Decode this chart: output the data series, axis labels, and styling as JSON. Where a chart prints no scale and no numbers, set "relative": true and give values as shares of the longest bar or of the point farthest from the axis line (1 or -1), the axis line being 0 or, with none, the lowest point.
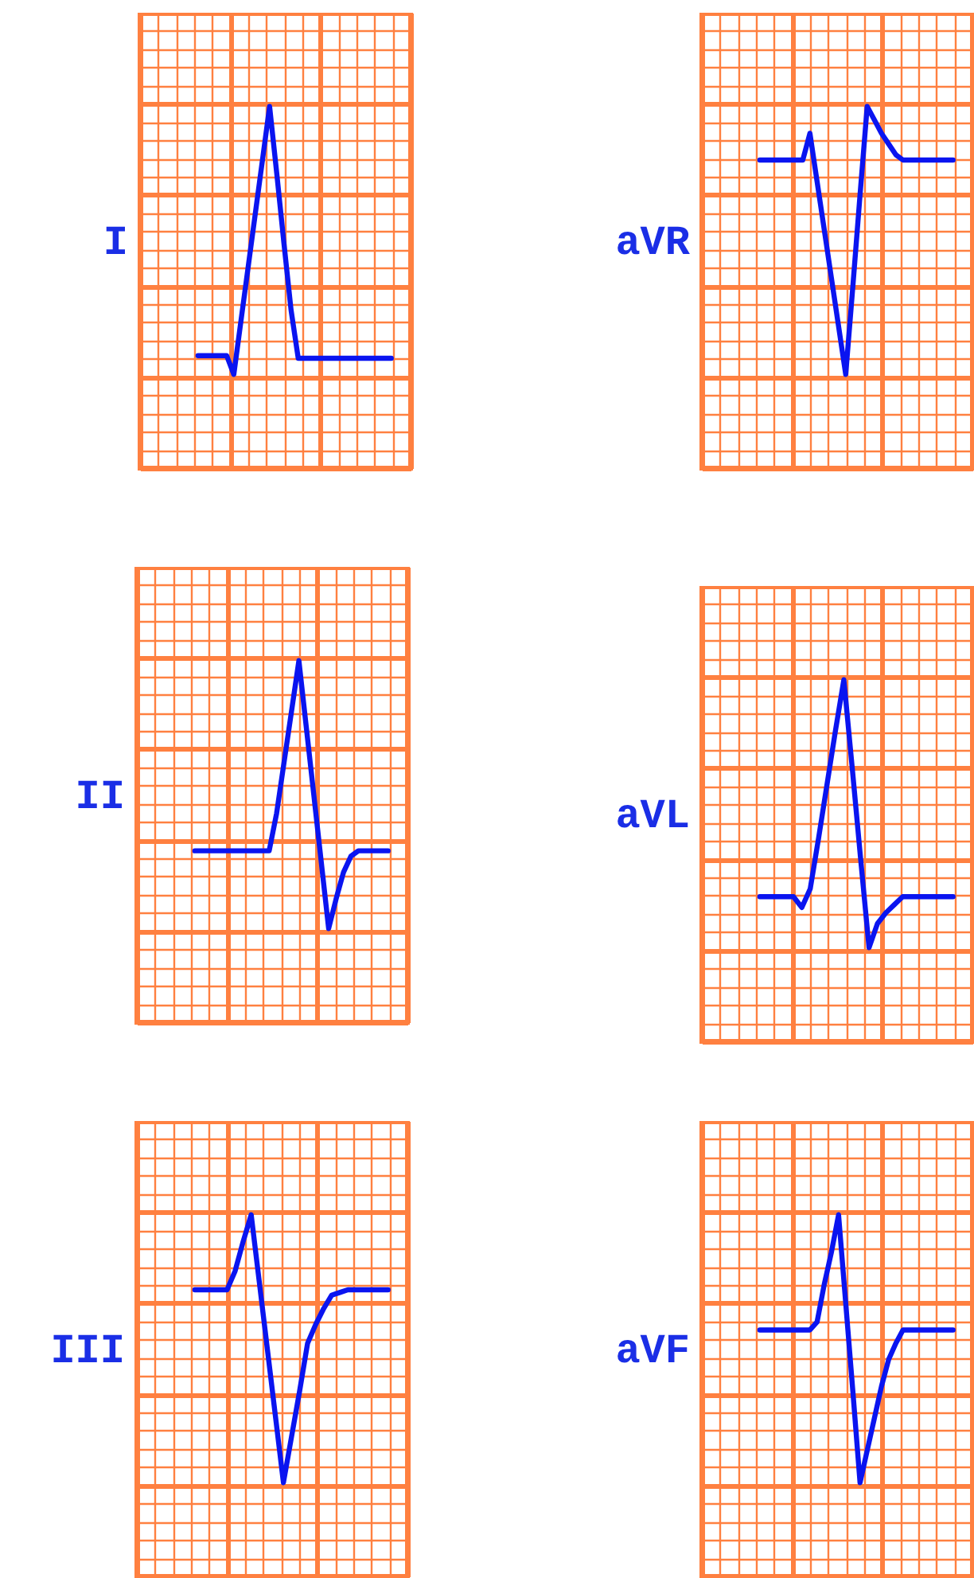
{
  "chart_data": [
    {
      "type": "line",
      "ylabel": "I",
      "relative": true,
      "grid": true,
      "categories": [
        null,
        null,
        null,
        null,
        null,
        null,
        null,
        null,
        null,
        null,
        null,
        null,
        null,
        null,
        null,
        null,
        null,
        null,
        null,
        null,
        null,
        null,
        null,
        null,
        null,
        null,
        null,
        null
      ],
      "series": [
        {
          "color": "#0a14f0",
          "values": [
            0.07,
            0.07,
            0.07,
            0.07,
            0.07,
            0,
            0.2,
            0.4,
            0.6,
            0.8,
            1,
            0.75,
            0.49,
            0.24,
            0.06,
            0.06,
            0.06,
            0.06,
            0.06,
            0.06,
            0.06,
            0.06,
            0.06,
            0.06,
            0.06,
            0.06,
            0.06,
            0.06
          ]
        }
      ]
    },
    {
      "type": "line",
      "ylabel": "aVR",
      "relative": true,
      "grid": true,
      "categories": [
        null,
        null,
        null,
        null,
        null,
        null,
        null,
        null,
        null,
        null,
        null,
        null,
        null,
        null,
        null,
        null,
        null,
        null,
        null,
        null,
        null,
        null,
        null,
        null,
        null,
        null,
        null,
        null
      ],
      "series": [
        {
          "color": "#0a14f0",
          "values": [
            0.8,
            0.8,
            0.8,
            0.8,
            0.8,
            0.8,
            0.8,
            0.9,
            0.72,
            0.54,
            0.36,
            0.18,
            0,
            0.33,
            0.67,
            1,
            0.95,
            0.9,
            0.86,
            0.82,
            0.8,
            0.8,
            0.8,
            0.8,
            0.8,
            0.8,
            0.8,
            0.8
          ]
        }
      ]
    },
    {
      "type": "line",
      "ylabel": "II",
      "relative": true,
      "grid": true,
      "categories": [
        null,
        null,
        null,
        null,
        null,
        null,
        null,
        null,
        null,
        null,
        null,
        null,
        null,
        null,
        null,
        null,
        null,
        null,
        null,
        null,
        null,
        null,
        null,
        null,
        null,
        null,
        null
      ],
      "series": [
        {
          "color": "#0a14f0",
          "values": [
            0.29,
            0.29,
            0.29,
            0.29,
            0.29,
            0.29,
            0.29,
            0.29,
            0.29,
            0.29,
            0.29,
            0.43,
            0.62,
            0.81,
            1,
            0.75,
            0.5,
            0.25,
            0,
            0.11,
            0.21,
            0.27,
            0.29,
            0.29,
            0.29,
            0.29,
            0.29
          ]
        }
      ]
    },
    {
      "type": "line",
      "ylabel": "aVL",
      "relative": true,
      "grid": true,
      "categories": [
        null,
        null,
        null,
        null,
        null,
        null,
        null,
        null,
        null,
        null,
        null,
        null,
        null,
        null,
        null,
        null,
        null,
        null,
        null,
        null,
        null,
        null,
        null,
        null
      ],
      "series": [
        {
          "color": "#0a14f0",
          "values": [
            0.19,
            0.19,
            0.19,
            0.19,
            0.19,
            0.15,
            0.22,
            0.41,
            0.61,
            0.81,
            1,
            0.67,
            0.33,
            0,
            0.09,
            0.13,
            0.16,
            0.19,
            0.19,
            0.19,
            0.19,
            0.19,
            0.19,
            0.19
          ]
        }
      ]
    },
    {
      "type": "line",
      "ylabel": "III",
      "relative": true,
      "grid": true,
      "categories": [
        null,
        null,
        null,
        null,
        null,
        null,
        null,
        null,
        null,
        null,
        null,
        null,
        null,
        null,
        null,
        null,
        null,
        null,
        null,
        null,
        null,
        null,
        null,
        null,
        null
      ],
      "series": [
        {
          "color": "#0a14f0",
          "values": [
            0.72,
            0.72,
            0.72,
            0.72,
            0.72,
            0.79,
            0.9,
            1,
            0.75,
            0.5,
            0.25,
            0,
            0.17,
            0.34,
            0.52,
            0.59,
            0.65,
            0.7,
            0.71,
            0.72,
            0.72,
            0.72,
            0.72,
            0.72,
            0.72
          ]
        }
      ]
    },
    {
      "type": "line",
      "ylabel": "aVF",
      "relative": true,
      "grid": true,
      "categories": [
        null,
        null,
        null,
        null,
        null,
        null,
        null,
        null,
        null,
        null,
        null,
        null,
        null,
        null,
        null,
        null,
        null,
        null,
        null,
        null,
        null,
        null,
        null,
        null,
        null,
        null,
        null,
        null
      ],
      "series": [
        {
          "color": "#0a14f0",
          "values": [
            0.57,
            0.57,
            0.57,
            0.57,
            0.57,
            0.57,
            0.57,
            0.57,
            0.6,
            0.74,
            0.86,
            1,
            0.67,
            0.34,
            0,
            0.12,
            0.24,
            0.36,
            0.46,
            0.52,
            0.57,
            0.57,
            0.57,
            0.57,
            0.57,
            0.57,
            0.57,
            0.57
          ]
        }
      ]
    }
  ]
}
